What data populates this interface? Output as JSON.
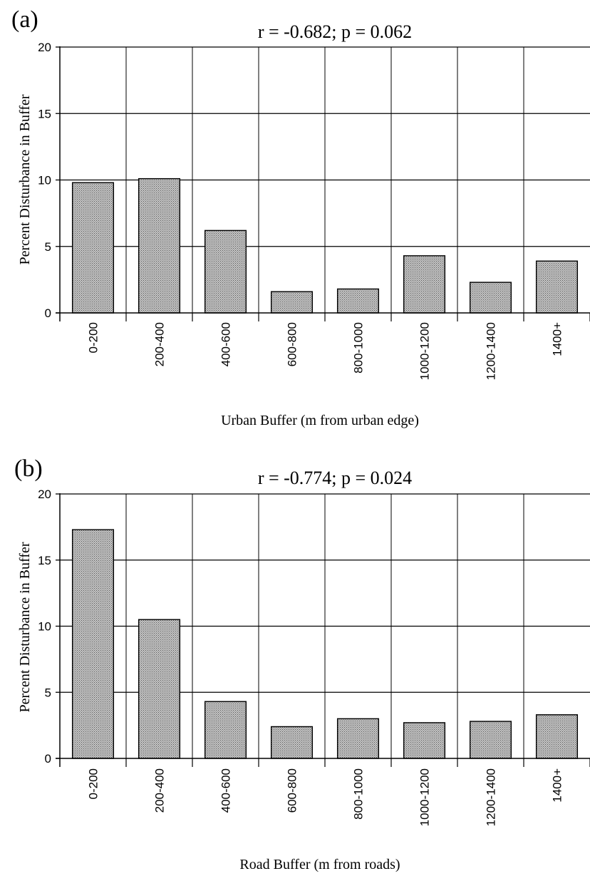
{
  "chart_data": [
    {
      "type": "bar",
      "panel_label": "(a)",
      "title": "r = -0.682; p = 0.062",
      "xlabel": "Urban Buffer (m from urban edge)",
      "ylabel": "Percent Disturbance in Buffer",
      "categories": [
        "0-200",
        "200-400",
        "400-600",
        "600-800",
        "800-1000",
        "1000-1200",
        "1200-1400",
        "1400+"
      ],
      "values": [
        9.8,
        10.1,
        6.2,
        1.6,
        1.8,
        4.3,
        2.3,
        3.9
      ],
      "ylim": [
        0,
        20
      ],
      "yticks": [
        "0",
        "5",
        "10",
        "15",
        "20"
      ],
      "grid": true,
      "bar_fill": "#a9a9a9"
    },
    {
      "type": "bar",
      "panel_label": "(b)",
      "title": "r = -0.774; p = 0.024",
      "xlabel": "Road Buffer (m from roads)",
      "ylabel": "Percent Disturbance in Buffer",
      "categories": [
        "0-200",
        "200-400",
        "400-600",
        "600-800",
        "800-1000",
        "1000-1200",
        "1200-1400",
        "1400+"
      ],
      "values": [
        17.3,
        10.5,
        4.3,
        2.4,
        3.0,
        2.7,
        2.8,
        3.3
      ],
      "ylim": [
        0,
        20
      ],
      "yticks": [
        "0",
        "5",
        "10",
        "15",
        "20"
      ],
      "grid": true,
      "bar_fill": "#a9a9a9"
    }
  ]
}
